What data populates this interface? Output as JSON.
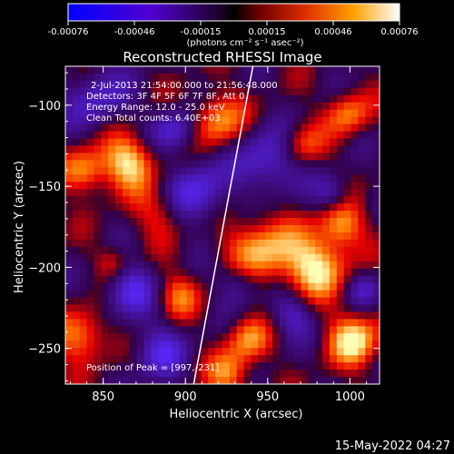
{
  "colorbar": {
    "ticks": [
      "-0.00076",
      "-0.00046",
      "-0.00015",
      "0.00015",
      "0.00046",
      "0.00076"
    ],
    "units": "(photons cm⁻² s⁻¹ asec⁻²)"
  },
  "chart_data": {
    "type": "heatmap",
    "title": "Reconstructed RHESSI Image",
    "xlabel": "Heliocentric X (arcsec)",
    "ylabel": "Heliocentric Y (arcsec)",
    "xlim": [
      827,
      1018
    ],
    "ylim": [
      -272,
      -76
    ],
    "xticks": [
      850,
      900,
      950,
      1000
    ],
    "yticks": [
      -100,
      -150,
      -200,
      -250
    ],
    "xtick_labels": [
      "850",
      "900",
      "950",
      "1000"
    ],
    "ytick_labels": [
      "−100",
      "−150",
      "−200",
      "−250"
    ],
    "value_range": [
      -0.00076,
      0.00076
    ],
    "limb_line": [
      [
        905,
        -272
      ],
      [
        941,
        -76
      ]
    ],
    "annotations": [
      "2-Jul-2013 21:54:00.000 to 21:56:48.000",
      "Detectors: 3F 4F 5F 6F 7F 8F, Att 0",
      "Energy Range: 12.0 - 25.0 keV",
      "Clean    Total counts: 6.40E+03"
    ],
    "peak_label": "Position of Peak = [997,-231]"
  },
  "footer": {
    "date": "15-May-2022 04:27"
  }
}
